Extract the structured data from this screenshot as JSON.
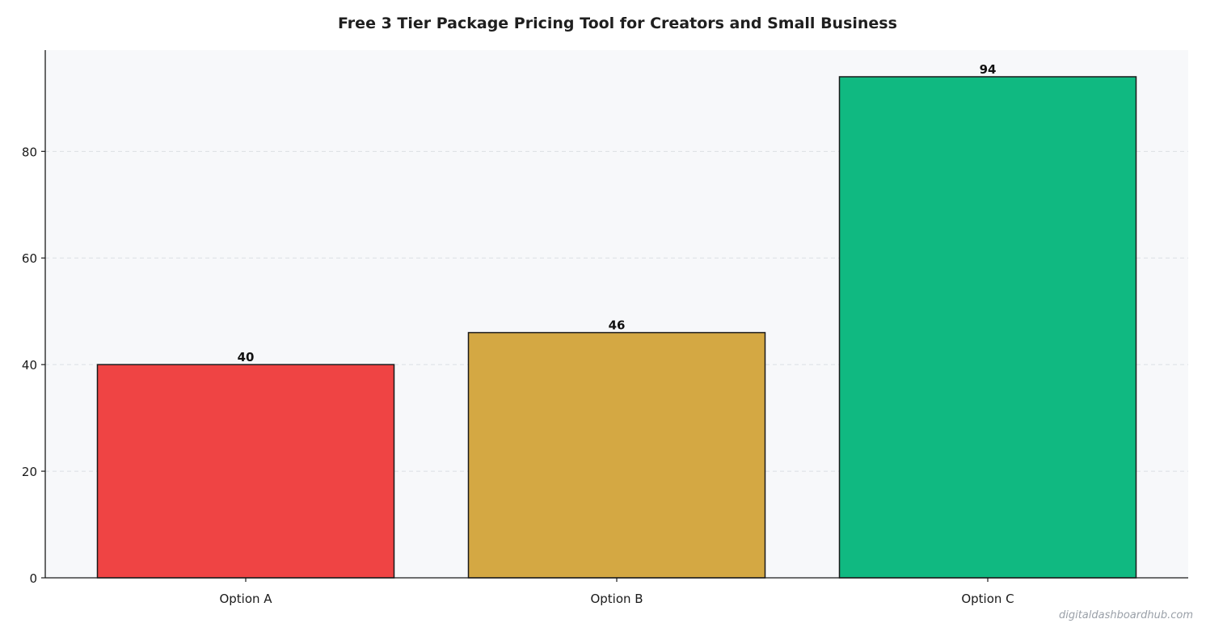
{
  "chart_data": {
    "type": "bar",
    "title": "Free 3 Tier Package Pricing Tool for Creators and Small Business",
    "xlabel": "",
    "ylabel": "",
    "categories": [
      "Option A",
      "Option B",
      "Option C"
    ],
    "values": [
      40,
      46,
      94
    ],
    "colors": [
      "#ef4444",
      "#d4a843",
      "#10b981"
    ],
    "bar_edge_color": "#1a1a1a",
    "plot_background": "#f7f8fa",
    "ylim": [
      0,
      99
    ],
    "yticks": [
      0,
      20,
      40,
      60,
      80
    ],
    "grid": "horizontal dashed",
    "legend": "none",
    "data_labels": [
      "40",
      "46",
      "94"
    ]
  },
  "watermark": "digitaldashboardhub.com"
}
